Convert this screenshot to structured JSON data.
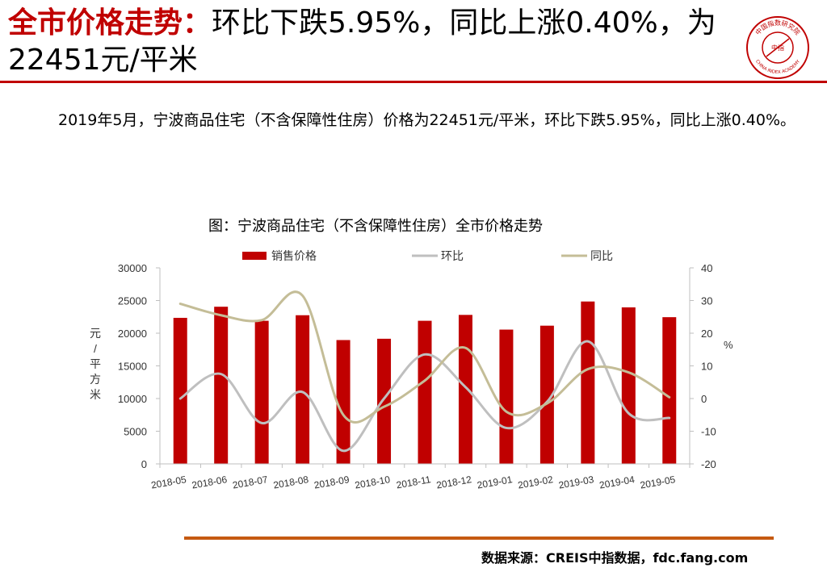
{
  "header": {
    "title_highlight": "全市价格走势：",
    "title_rest": "环比下跌5.95%，同比上涨0.40%，为22451元/平米"
  },
  "logo": {
    "icon": "china-index-academy-seal-icon",
    "text_top": "中国指数研究院",
    "text_bottom": "CHINA INDEX ACADEMY",
    "center_text": "中指"
  },
  "paragraph": "2019年5月，宁波商品住宅（不含保障性住房）价格为22451元/平米，环比下跌5.95%，同比上涨0.40%。",
  "colors": {
    "accent": "#c00000",
    "bar": "#c00000",
    "mom_line": "#bfbfbf",
    "yoy_line": "#c4bd97",
    "bottom_rule": "#c55a11"
  },
  "chart_data": {
    "type": "bar",
    "title": "图：宁波商品住宅（不含保障性住房）全市价格走势",
    "categories": [
      "2018-05",
      "2018-06",
      "2018-07",
      "2018-08",
      "2018-09",
      "2018-10",
      "2018-11",
      "2018-12",
      "2019-01",
      "2019-02",
      "2019-03",
      "2019-04",
      "2019-05"
    ],
    "series": [
      {
        "name": "销售价格",
        "type": "bar",
        "axis": "left",
        "values": [
          22350,
          24050,
          21900,
          22750,
          18950,
          19150,
          21900,
          22800,
          20550,
          21150,
          24850,
          23950,
          22451
        ]
      },
      {
        "name": "环比",
        "type": "line",
        "axis": "right",
        "values": [
          0,
          7.5,
          -7.5,
          2,
          -16,
          0,
          13.5,
          3.5,
          -9,
          -1,
          17.5,
          -4.5,
          -5.95
        ]
      },
      {
        "name": "同比",
        "type": "line",
        "axis": "right",
        "values": [
          29,
          25.5,
          24,
          31.5,
          -5,
          -2.5,
          5.5,
          15.5,
          -4,
          -1.5,
          9,
          8,
          0.4
        ]
      }
    ],
    "ylabel": "元/平方米",
    "ylim": [
      0,
      30000
    ],
    "yticks": [
      "0",
      "5000",
      "10000",
      "15000",
      "20000",
      "25000",
      "30000"
    ],
    "y2label": "%",
    "y2lim": [
      -20,
      40
    ],
    "y2ticks": [
      "-20",
      "-10",
      "0",
      "10",
      "20",
      "30",
      "40"
    ],
    "legend_position": "top",
    "grid": false
  },
  "source": "数据来源：CREIS中指数据，fdc.fang.com"
}
